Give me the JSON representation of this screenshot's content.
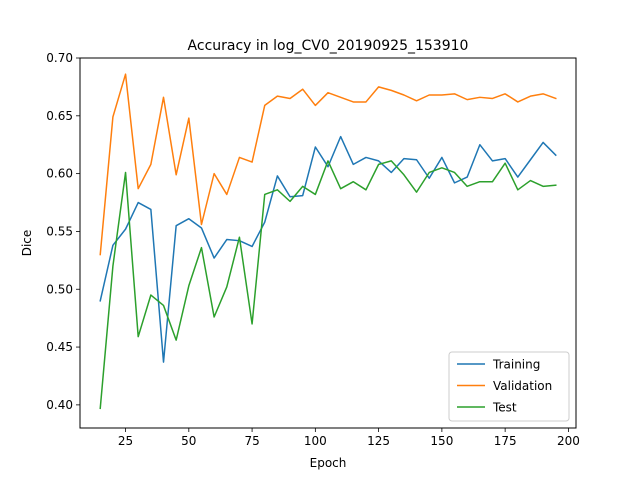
{
  "chart_data": {
    "type": "line",
    "title": "Accuracy in log_CV0_20190925_153910",
    "xlabel": "Epoch",
    "ylabel": "Dice",
    "xlim": [
      7,
      203
    ],
    "ylim": [
      0.38,
      0.7
    ],
    "xticks": [
      25,
      50,
      75,
      100,
      125,
      150,
      175,
      200
    ],
    "xtick_labels": [
      "25",
      "50",
      "75",
      "100",
      "125",
      "150",
      "175",
      "200"
    ],
    "yticks": [
      0.4,
      0.45,
      0.5,
      0.55,
      0.6,
      0.65,
      0.7
    ],
    "ytick_labels": [
      "0.40",
      "0.45",
      "0.50",
      "0.55",
      "0.60",
      "0.65",
      "0.70"
    ],
    "grid": false,
    "legend": "lower-right",
    "x": [
      15,
      20,
      25,
      30,
      35,
      40,
      45,
      50,
      55,
      60,
      65,
      70,
      75,
      80,
      85,
      90,
      95,
      100,
      105,
      110,
      115,
      120,
      125,
      130,
      135,
      140,
      145,
      150,
      155,
      160,
      165,
      170,
      175,
      180,
      185,
      190,
      195
    ],
    "series": [
      {
        "name": "Training",
        "color": "#1f77b4",
        "values": [
          0.49,
          0.538,
          0.552,
          0.575,
          0.569,
          0.437,
          0.555,
          0.561,
          0.553,
          0.527,
          0.543,
          0.542,
          0.537,
          0.558,
          0.598,
          0.58,
          0.581,
          0.623,
          0.606,
          0.632,
          0.608,
          0.614,
          0.611,
          0.601,
          0.613,
          0.612,
          0.596,
          0.614,
          0.592,
          0.597,
          0.625,
          0.611,
          0.613,
          0.597,
          0.612,
          0.627,
          0.616
        ]
      },
      {
        "name": "Validation",
        "color": "#ff7f0e",
        "values": [
          0.53,
          0.649,
          0.686,
          0.587,
          0.608,
          0.666,
          0.599,
          0.648,
          0.556,
          0.6,
          0.582,
          0.614,
          0.61,
          0.659,
          0.667,
          0.665,
          0.673,
          0.659,
          0.67,
          0.666,
          0.662,
          0.662,
          0.675,
          0.672,
          0.668,
          0.663,
          0.668,
          0.668,
          0.669,
          0.664,
          0.666,
          0.665,
          0.669,
          0.662,
          0.667,
          0.669,
          0.665
        ]
      },
      {
        "name": "Test",
        "color": "#2ca02c",
        "values": [
          0.397,
          0.52,
          0.601,
          0.459,
          0.495,
          0.486,
          0.456,
          0.503,
          0.536,
          0.476,
          0.502,
          0.545,
          0.47,
          0.582,
          0.586,
          0.576,
          0.589,
          0.582,
          0.611,
          0.587,
          0.593,
          0.586,
          0.608,
          0.611,
          0.599,
          0.584,
          0.601,
          0.605,
          0.601,
          0.589,
          0.593,
          0.593,
          0.609,
          0.586,
          0.594,
          0.589,
          0.59
        ]
      }
    ]
  }
}
